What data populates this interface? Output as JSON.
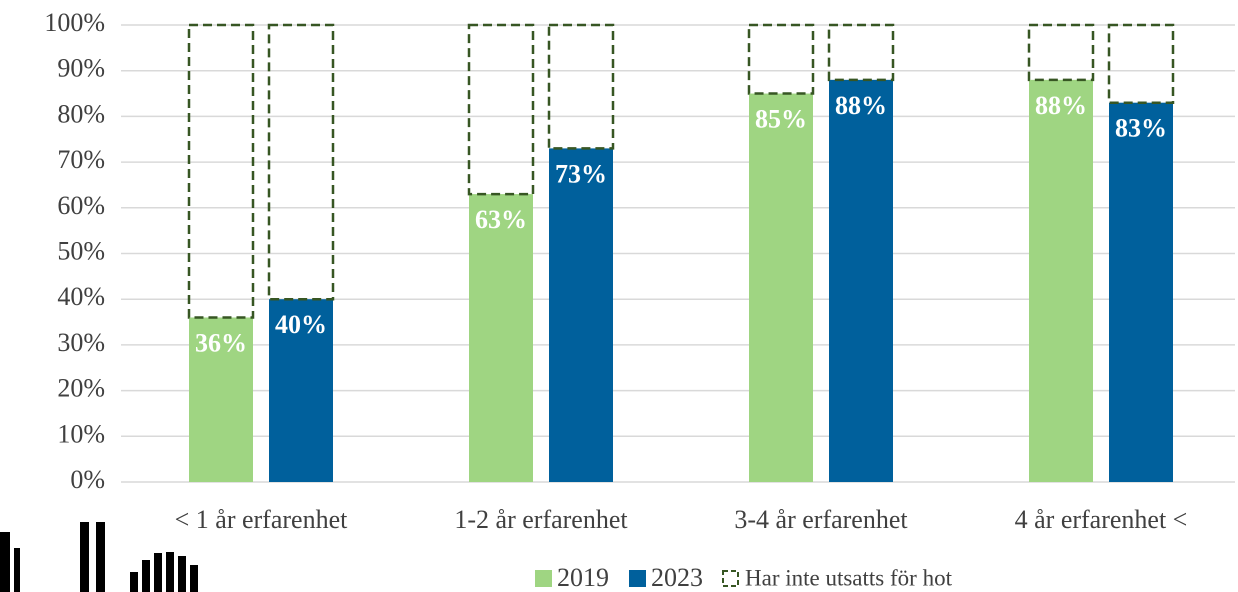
{
  "chart_data": {
    "type": "bar",
    "categories": [
      "< 1 år erfarenhet",
      "1-2 år erfarenhet",
      "3-4 år erfarenhet",
      "4 år erfarenhet <"
    ],
    "series": [
      {
        "name": "2019",
        "color": "#9fd582",
        "values": [
          36,
          63,
          85,
          88
        ],
        "value_labels": [
          "36%",
          "63%",
          "85%",
          "88%"
        ]
      },
      {
        "name": "2023",
        "color": "#00609c",
        "values": [
          40,
          73,
          88,
          83
        ],
        "value_labels": [
          "40%",
          "73%",
          "88%",
          "83%"
        ]
      }
    ],
    "remainder": {
      "name": "Har inte utsatts för hot",
      "color": "#375623",
      "values": [
        [
          64,
          60
        ],
        [
          37,
          27
        ],
        [
          15,
          12
        ],
        [
          12,
          17
        ]
      ]
    },
    "ylim": [
      0,
      100
    ],
    "yticks": [
      {
        "value": 0,
        "label": "0%"
      },
      {
        "value": 10,
        "label": "10%"
      },
      {
        "value": 20,
        "label": "20%"
      },
      {
        "value": 30,
        "label": "30%"
      },
      {
        "value": 40,
        "label": "40%"
      },
      {
        "value": 50,
        "label": "50%"
      },
      {
        "value": 60,
        "label": "60%"
      },
      {
        "value": 70,
        "label": "70%"
      },
      {
        "value": 80,
        "label": "80%"
      },
      {
        "value": 90,
        "label": "90%"
      },
      {
        "value": 100,
        "label": "100%"
      }
    ],
    "grid": true
  }
}
